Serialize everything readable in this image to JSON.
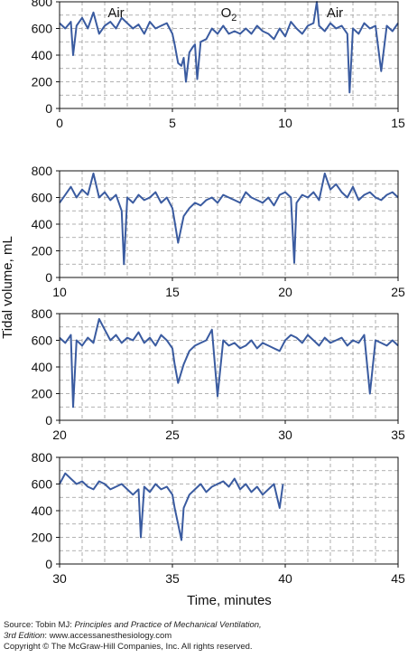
{
  "chart_data": {
    "type": "line",
    "ylabel": "Tidal volume, mL",
    "xlabel": "Time, minutes",
    "line_color": "#3a5ba0",
    "grid": "dashed",
    "panels": [
      {
        "xlim": [
          0,
          15
        ],
        "ylim": [
          0,
          800
        ],
        "xticks": [
          "0",
          "5",
          "10",
          "15"
        ],
        "yticks": [
          "0",
          "200",
          "400",
          "600",
          "800"
        ],
        "phase_labels": [
          {
            "text": "Air",
            "x": 2.5
          },
          {
            "text": "O",
            "sub": "2",
            "x": 7.5
          },
          {
            "text": "Air",
            "x": 12.2
          }
        ],
        "series": {
          "x": [
            0.0,
            0.25,
            0.5,
            0.6,
            0.75,
            1.0,
            1.25,
            1.5,
            1.75,
            2.0,
            2.25,
            2.5,
            2.75,
            3.0,
            3.25,
            3.5,
            3.75,
            4.0,
            4.25,
            4.5,
            4.75,
            5.0,
            5.1,
            5.25,
            5.4,
            5.5,
            5.6,
            5.75,
            5.9,
            6.0,
            6.1,
            6.25,
            6.5,
            6.75,
            7.0,
            7.25,
            7.5,
            7.75,
            8.0,
            8.25,
            8.5,
            8.75,
            9.0,
            9.25,
            9.5,
            9.75,
            10.0,
            10.25,
            10.5,
            10.75,
            11.0,
            11.25,
            11.4,
            11.5,
            11.75,
            12.0,
            12.25,
            12.5,
            12.75,
            12.85,
            13.0,
            13.25,
            13.5,
            13.75,
            14.0,
            14.25,
            14.5,
            14.75,
            15.0
          ],
          "y": [
            640,
            600,
            650,
            400,
            620,
            680,
            600,
            720,
            560,
            620,
            650,
            600,
            680,
            640,
            600,
            630,
            560,
            650,
            600,
            620,
            640,
            560,
            480,
            340,
            320,
            380,
            200,
            420,
            460,
            480,
            220,
            500,
            520,
            600,
            560,
            620,
            560,
            580,
            560,
            600,
            560,
            620,
            580,
            560,
            520,
            600,
            540,
            650,
            600,
            560,
            620,
            640,
            800,
            620,
            580,
            640,
            600,
            620,
            560,
            120,
            600,
            560,
            640,
            600,
            620,
            280,
            620,
            580,
            640
          ]
        }
      },
      {
        "xlim": [
          10,
          25
        ],
        "ylim": [
          0,
          800
        ],
        "xticks": [
          "10",
          "15",
          "20",
          "25"
        ],
        "yticks": [
          "0",
          "200",
          "400",
          "600",
          "800"
        ],
        "series": {
          "x": [
            10.0,
            10.25,
            10.5,
            10.75,
            11.0,
            11.25,
            11.5,
            11.75,
            12.0,
            12.25,
            12.5,
            12.75,
            12.85,
            13.0,
            13.25,
            13.5,
            13.75,
            14.0,
            14.25,
            14.5,
            14.75,
            15.0,
            15.1,
            15.25,
            15.5,
            15.75,
            16.0,
            16.25,
            16.5,
            16.75,
            17.0,
            17.25,
            17.5,
            17.75,
            18.0,
            18.25,
            18.5,
            18.75,
            19.0,
            19.25,
            19.5,
            19.75,
            20.0,
            20.25,
            20.4,
            20.5,
            20.75,
            21.0,
            21.25,
            21.5,
            21.75,
            22.0,
            22.25,
            22.5,
            22.75,
            23.0,
            23.25,
            23.5,
            23.75,
            24.0,
            24.25,
            24.5,
            24.75,
            25.0
          ],
          "y": [
            560,
            620,
            680,
            600,
            660,
            620,
            780,
            600,
            640,
            580,
            620,
            500,
            100,
            600,
            560,
            620,
            580,
            600,
            640,
            560,
            600,
            520,
            420,
            260,
            460,
            520,
            560,
            540,
            580,
            600,
            560,
            620,
            600,
            580,
            560,
            640,
            600,
            580,
            560,
            600,
            540,
            620,
            640,
            600,
            110,
            560,
            620,
            600,
            640,
            580,
            780,
            660,
            700,
            640,
            600,
            680,
            580,
            620,
            640,
            600,
            580,
            620,
            640,
            600
          ]
        }
      },
      {
        "xlim": [
          20,
          35
        ],
        "ylim": [
          0,
          800
        ],
        "xticks": [
          "20",
          "25",
          "30",
          "35"
        ],
        "yticks": [
          "0",
          "200",
          "400",
          "600",
          "800"
        ],
        "series": {
          "x": [
            20.0,
            20.25,
            20.5,
            20.6,
            20.75,
            21.0,
            21.25,
            21.5,
            21.75,
            22.0,
            22.25,
            22.5,
            22.75,
            23.0,
            23.25,
            23.5,
            23.75,
            24.0,
            24.25,
            24.5,
            24.75,
            25.0,
            25.1,
            25.25,
            25.5,
            25.75,
            26.0,
            26.25,
            26.5,
            26.75,
            27.0,
            27.25,
            27.5,
            27.75,
            28.0,
            28.25,
            28.5,
            28.75,
            29.0,
            29.25,
            29.5,
            29.75,
            30.0,
            30.25,
            30.5,
            30.75,
            31.0,
            31.25,
            31.5,
            31.75,
            32.0,
            32.25,
            32.5,
            32.75,
            33.0,
            33.25,
            33.5,
            33.75,
            34.0,
            34.25,
            34.5,
            34.75,
            35.0
          ],
          "y": [
            620,
            580,
            640,
            100,
            600,
            560,
            620,
            580,
            760,
            680,
            600,
            640,
            580,
            620,
            600,
            660,
            580,
            620,
            560,
            640,
            600,
            540,
            420,
            280,
            420,
            520,
            560,
            580,
            600,
            680,
            180,
            600,
            560,
            580,
            540,
            560,
            600,
            540,
            580,
            560,
            540,
            520,
            600,
            640,
            620,
            580,
            640,
            600,
            560,
            620,
            580,
            600,
            620,
            560,
            600,
            580,
            640,
            200,
            600,
            580,
            560,
            600,
            560
          ]
        }
      },
      {
        "xlim": [
          30,
          45
        ],
        "ylim": [
          0,
          800
        ],
        "xticks": [
          "30",
          "35",
          "40",
          "45"
        ],
        "yticks": [
          "0",
          "200",
          "400",
          "600",
          "800"
        ],
        "series": {
          "x": [
            30.0,
            30.25,
            30.5,
            30.75,
            31.0,
            31.25,
            31.5,
            31.75,
            32.0,
            32.25,
            32.5,
            32.75,
            33.0,
            33.25,
            33.5,
            33.6,
            33.75,
            34.0,
            34.25,
            34.5,
            34.75,
            35.0,
            35.1,
            35.25,
            35.4,
            35.5,
            35.75,
            36.0,
            36.25,
            36.5,
            36.75,
            37.0,
            37.25,
            37.5,
            37.75,
            38.0,
            38.25,
            38.5,
            38.75,
            39.0,
            39.25,
            39.5,
            39.75,
            39.9
          ],
          "y": [
            600,
            680,
            640,
            600,
            620,
            580,
            560,
            620,
            600,
            560,
            580,
            600,
            560,
            520,
            560,
            200,
            580,
            540,
            600,
            560,
            580,
            520,
            420,
            300,
            180,
            420,
            520,
            560,
            600,
            540,
            580,
            600,
            620,
            580,
            640,
            560,
            600,
            540,
            580,
            520,
            560,
            600,
            420,
            600
          ]
        }
      }
    ]
  },
  "footer": {
    "source_prefix": "Source: Tobin MJ: ",
    "source_title": "Principles and Practice of Mechanical Ventilation,",
    "edition": "3rd Edition",
    "edition_suffix": ": www.accessanesthesiology.com",
    "copyright": "Copyright © The McGraw-Hill Companies, Inc. All rights reserved."
  }
}
